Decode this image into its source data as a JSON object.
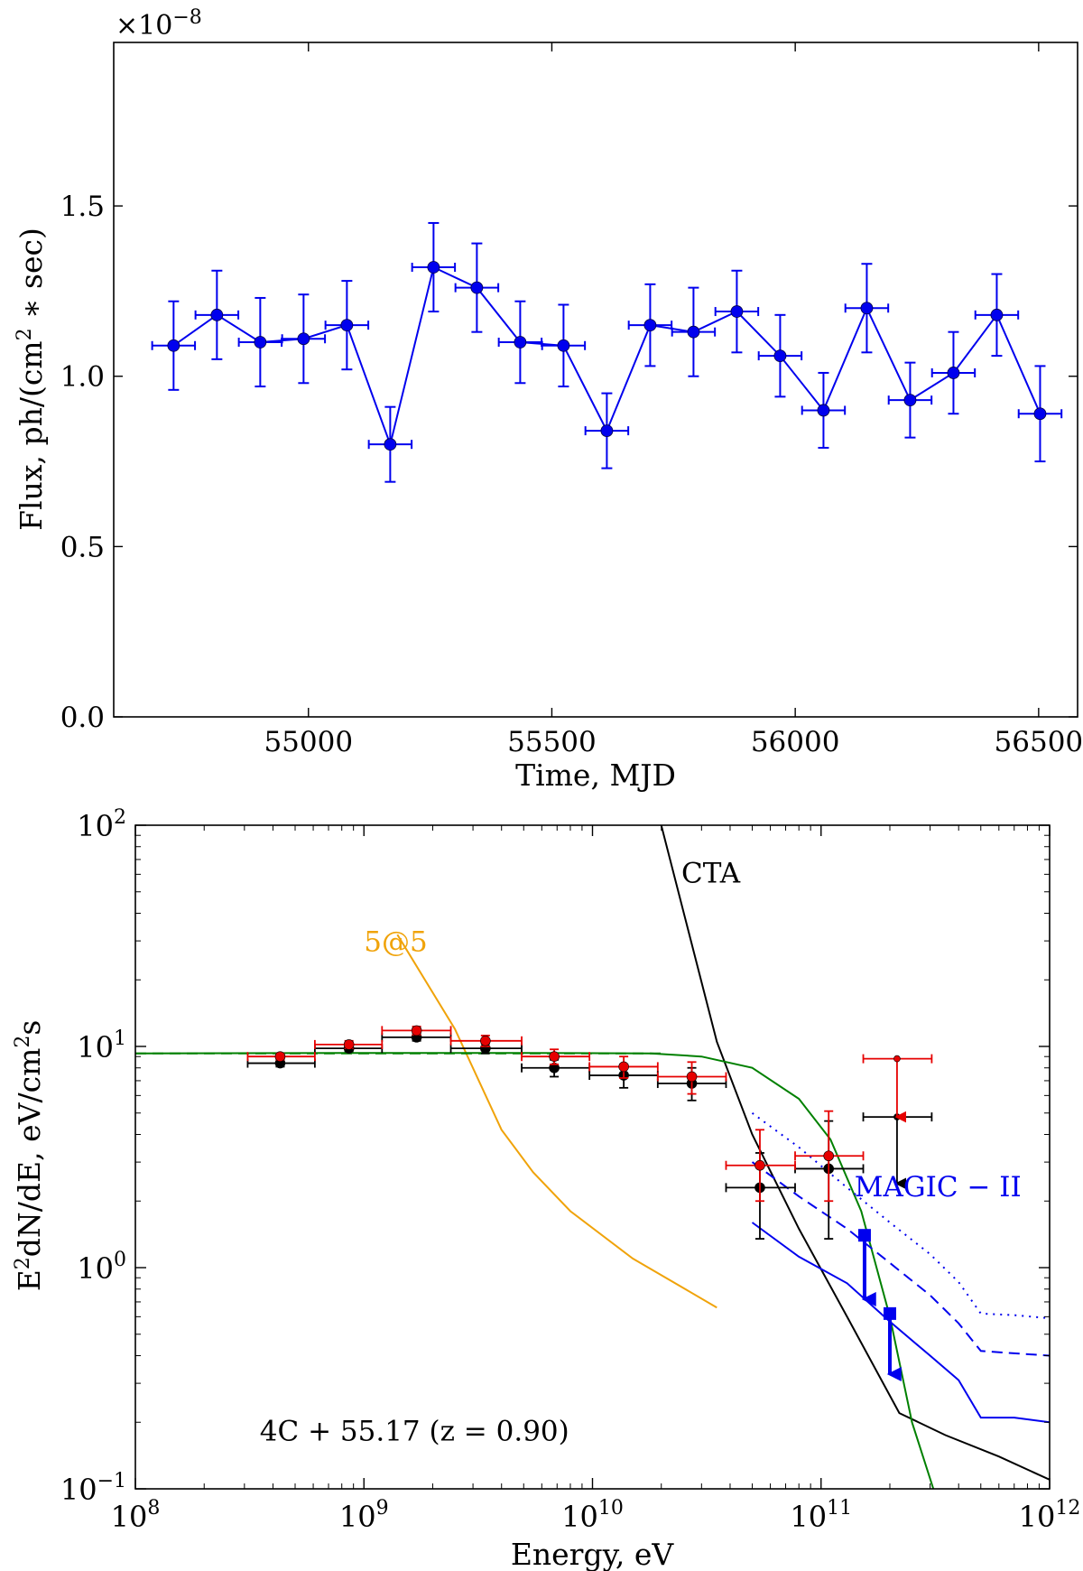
{
  "chart_data": [
    {
      "type": "scatter",
      "title": "",
      "xlabel": "Time, MJD",
      "ylabel_prefix": "Flux, ph/(cm",
      "ylabel_sup": "2",
      "ylabel_suffix": " ∗ sec)",
      "offset_label": "×10",
      "offset_exp": "−8",
      "xlim": [
        54600,
        56580
      ],
      "ylim": [
        0.0,
        1.98
      ],
      "xticks": [
        55000,
        55500,
        56000,
        56500
      ],
      "xtick_labels": [
        "55000",
        "55500",
        "56000",
        "56500"
      ],
      "yticks": [
        0.0,
        0.5,
        1.0,
        1.5
      ],
      "ytick_labels": [
        "0.0",
        "0.5",
        "1.0",
        "1.5"
      ],
      "grid": false,
      "series": [
        {
          "name": "flux",
          "color": "#0000ee",
          "x": [
            54723,
            54812,
            54901,
            54990,
            55079,
            55168,
            55257,
            55346,
            55435,
            55524,
            55613,
            55702,
            55791,
            55880,
            55969,
            56058,
            56147,
            56236,
            56325,
            56414,
            56503
          ],
          "y": [
            1.09,
            1.18,
            1.1,
            1.11,
            1.15,
            0.8,
            1.32,
            1.26,
            1.1,
            1.09,
            0.84,
            1.15,
            1.13,
            1.19,
            1.06,
            0.9,
            1.2,
            0.93,
            1.01,
            1.18,
            0.89
          ],
          "xerr": 44,
          "yerr": [
            0.13,
            0.13,
            0.13,
            0.13,
            0.13,
            0.11,
            0.13,
            0.13,
            0.12,
            0.12,
            0.11,
            0.12,
            0.13,
            0.12,
            0.12,
            0.11,
            0.13,
            0.11,
            0.12,
            0.12,
            0.14
          ]
        }
      ]
    },
    {
      "type": "line",
      "title": "",
      "xlabel": "Energy, eV",
      "ylabel_prefix": "E",
      "ylabel_sup": "2",
      "ylabel_suffix": "dN/dE, eV/cm",
      "ylabel_sup2": "2",
      "ylabel_end": "s",
      "xscale": "log",
      "yscale": "log",
      "xlim": [
        100000000.0,
        1000000000000.0
      ],
      "ylim": [
        0.1,
        100
      ],
      "xticks": [
        {
          "base": "10",
          "exp": "8",
          "value": 100000000.0
        },
        {
          "base": "10",
          "exp": "9",
          "value": 1000000000.0
        },
        {
          "base": "10",
          "exp": "10",
          "value": 10000000000.0
        },
        {
          "base": "10",
          "exp": "11",
          "value": 100000000000.0
        },
        {
          "base": "10",
          "exp": "12",
          "value": 1000000000000.0
        }
      ],
      "yticks": [
        {
          "base": "10",
          "exp": "−1",
          "value": 0.1
        },
        {
          "base": "10",
          "exp": "0",
          "value": 1
        },
        {
          "base": "10",
          "exp": "1",
          "value": 10
        },
        {
          "base": "10",
          "exp": "2",
          "value": 100
        }
      ],
      "grid": false,
      "annotations": [
        {
          "name": "source-label",
          "text": "4C  + 55.17 (z = 0.90)",
          "x": 350000000.0,
          "y": 0.165,
          "color": "#000000"
        },
        {
          "name": "cta-label",
          "text": "CTA",
          "x": 24500000000.0,
          "y": 55,
          "color": "#000000"
        },
        {
          "name": "five-at-five-label",
          "text": "5@5",
          "x": 1000000000.0,
          "y": 27,
          "color": "#f0a30a"
        },
        {
          "name": "magic-label",
          "text": "MAGIC − II",
          "x": 140000000000.0,
          "y": 2.1,
          "color": "#0000ee"
        }
      ],
      "lines": [
        {
          "name": "cta-sensitivity",
          "color": "#000000",
          "style": "solid",
          "x": [
            20000000000.0,
            35000000000.0,
            50000000000.0,
            80000000000.0,
            130000000000.0,
            220000000000.0,
            350000000000.0,
            600000000000.0,
            1000000000000.0
          ],
          "y": [
            100,
            10.5,
            4.0,
            1.5,
            0.6,
            0.22,
            0.175,
            0.14,
            0.11
          ]
        },
        {
          "name": "five-at-five-sensitivity",
          "color": "#f0a30a",
          "style": "solid",
          "x": [
            1400000000.0,
            2500000000.0,
            4000000000.0,
            5500000000.0,
            8000000000.0,
            15000000000.0,
            35000000000.0
          ],
          "y": [
            32,
            12,
            4.2,
            2.7,
            1.8,
            1.1,
            0.66
          ]
        },
        {
          "name": "model-spectrum",
          "color": "#008000",
          "style": "solid",
          "x": [
            100000000.0,
            1000000000.0,
            5000000000.0,
            18000000000.0,
            30000000000.0,
            50000000000.0,
            80000000000.0,
            110000000000.0,
            150000000000.0,
            200000000000.0,
            250000000000.0,
            310000000000.0
          ],
          "y": [
            9.3,
            9.35,
            9.35,
            9.3,
            9.0,
            8.0,
            5.8,
            3.8,
            1.8,
            0.6,
            0.2,
            0.1
          ]
        },
        {
          "name": "model-absorbed",
          "color": "#008000",
          "style": "dashed",
          "x": [
            100000000.0,
            20000000000.0
          ],
          "y": [
            9.3,
            9.3
          ]
        },
        {
          "name": "magic-50h",
          "color": "#0000ee",
          "style": "solid",
          "x": [
            50000000000.0,
            80000000000.0,
            130000000000.0,
            200000000000.0,
            300000000000.0,
            400000000000.0,
            500000000000.0,
            700000000000.0,
            1000000000000.0
          ],
          "y": [
            1.6,
            1.12,
            0.85,
            0.57,
            0.4,
            0.31,
            0.21,
            0.21,
            0.2
          ]
        },
        {
          "name": "magic-5h",
          "color": "#0000ee",
          "style": "dashed",
          "x": [
            50000000000.0,
            80000000000.0,
            130000000000.0,
            200000000000.0,
            300000000000.0,
            400000000000.0,
            500000000000.0,
            700000000000.0,
            1000000000000.0
          ],
          "y": [
            3.0,
            2.1,
            1.5,
            1.05,
            0.75,
            0.56,
            0.42,
            0.41,
            0.4
          ]
        },
        {
          "name": "magic-0.5h",
          "color": "#0000ee",
          "style": "dotted",
          "x": [
            50000000000.0,
            80000000000.0,
            130000000000.0,
            200000000000.0,
            300000000000.0,
            400000000000.0,
            500000000000.0,
            700000000000.0,
            1000000000000.0
          ],
          "y": [
            5.0,
            3.5,
            2.3,
            1.6,
            1.15,
            0.86,
            0.62,
            0.61,
            0.59
          ]
        }
      ],
      "data_series": [
        {
          "name": "fermi-black",
          "color": "#000000",
          "points": [
            {
              "x": 430000000.0,
              "y": 8.4,
              "xlo": 310000000.0,
              "xhi": 610000000.0,
              "ylo": 8.1,
              "yhi": 8.7
            },
            {
              "x": 860000000.0,
              "y": 9.8,
              "xlo": 610000000.0,
              "xhi": 1200000000.0,
              "ylo": 9.5,
              "yhi": 10.1
            },
            {
              "x": 1700000000.0,
              "y": 11.0,
              "xlo": 1200000000.0,
              "xhi": 2400000000.0,
              "ylo": 10.6,
              "yhi": 11.4
            },
            {
              "x": 3400000000.0,
              "y": 9.8,
              "xlo": 2400000000.0,
              "xhi": 4900000000.0,
              "ylo": 9.3,
              "yhi": 10.3
            },
            {
              "x": 6800000000.0,
              "y": 8.0,
              "xlo": 4900000000.0,
              "xhi": 9700000000.0,
              "ylo": 7.3,
              "yhi": 8.7
            },
            {
              "x": 13700000000.0,
              "y": 7.4,
              "xlo": 9700000000.0,
              "xhi": 19300000000.0,
              "ylo": 6.5,
              "yhi": 8.3
            },
            {
              "x": 27200000000.0,
              "y": 6.8,
              "xlo": 19300000000.0,
              "xhi": 38400000000.0,
              "ylo": 5.7,
              "yhi": 8.0
            },
            {
              "x": 54000000000.0,
              "y": 2.3,
              "xlo": 38400000000.0,
              "xhi": 77000000000.0,
              "ylo": 1.35,
              "yhi": 3.3
            },
            {
              "x": 108000000000.0,
              "y": 2.8,
              "xlo": 77000000000.0,
              "xhi": 153000000000.0,
              "ylo": 1.35,
              "yhi": 4.6
            },
            {
              "x": 215000000000.0,
              "y": 4.8,
              "xlo": 153000000000.0,
              "xhi": 305000000000.0,
              "ylo": 2.4,
              "yhi": 4.8,
              "upper_limit": true
            }
          ]
        },
        {
          "name": "fermi-red",
          "color": "#e60000",
          "points": [
            {
              "x": 430000000.0,
              "y": 9.0,
              "xlo": 310000000.0,
              "xhi": 610000000.0,
              "ylo": 8.7,
              "yhi": 9.3
            },
            {
              "x": 860000000.0,
              "y": 10.2,
              "xlo": 610000000.0,
              "xhi": 1200000000.0,
              "ylo": 9.8,
              "yhi": 10.6
            },
            {
              "x": 1700000000.0,
              "y": 11.8,
              "xlo": 1200000000.0,
              "xhi": 2400000000.0,
              "ylo": 11.3,
              "yhi": 12.3
            },
            {
              "x": 3400000000.0,
              "y": 10.6,
              "xlo": 2400000000.0,
              "xhi": 4900000000.0,
              "ylo": 10.0,
              "yhi": 11.2
            },
            {
              "x": 6800000000.0,
              "y": 9.0,
              "xlo": 4900000000.0,
              "xhi": 9700000000.0,
              "ylo": 8.3,
              "yhi": 9.7
            },
            {
              "x": 13700000000.0,
              "y": 8.1,
              "xlo": 9700000000.0,
              "xhi": 19300000000.0,
              "ylo": 7.2,
              "yhi": 9.0
            },
            {
              "x": 27200000000.0,
              "y": 7.3,
              "xlo": 19300000000.0,
              "xhi": 38400000000.0,
              "ylo": 6.1,
              "yhi": 8.5
            },
            {
              "x": 54000000000.0,
              "y": 2.9,
              "xlo": 38400000000.0,
              "xhi": 77000000000.0,
              "ylo": 2.0,
              "yhi": 4.2
            },
            {
              "x": 108000000000.0,
              "y": 3.2,
              "xlo": 77000000000.0,
              "xhi": 153000000000.0,
              "ylo": 2.0,
              "yhi": 5.1
            },
            {
              "x": 215000000000.0,
              "y": 8.8,
              "xlo": 153000000000.0,
              "xhi": 305000000000.0,
              "ylo": 4.8,
              "yhi": 8.8,
              "upper_limit": true
            }
          ]
        },
        {
          "name": "magic-upper-limits",
          "color": "#0000ee",
          "points": [
            {
              "x": 155000000000.0,
              "y": 1.4,
              "ylo": 0.72,
              "upper_limit": true,
              "marker": "square"
            },
            {
              "x": 200000000000.0,
              "y": 0.62,
              "ylo": 0.33,
              "upper_limit": true,
              "marker": "square"
            }
          ]
        }
      ]
    }
  ]
}
